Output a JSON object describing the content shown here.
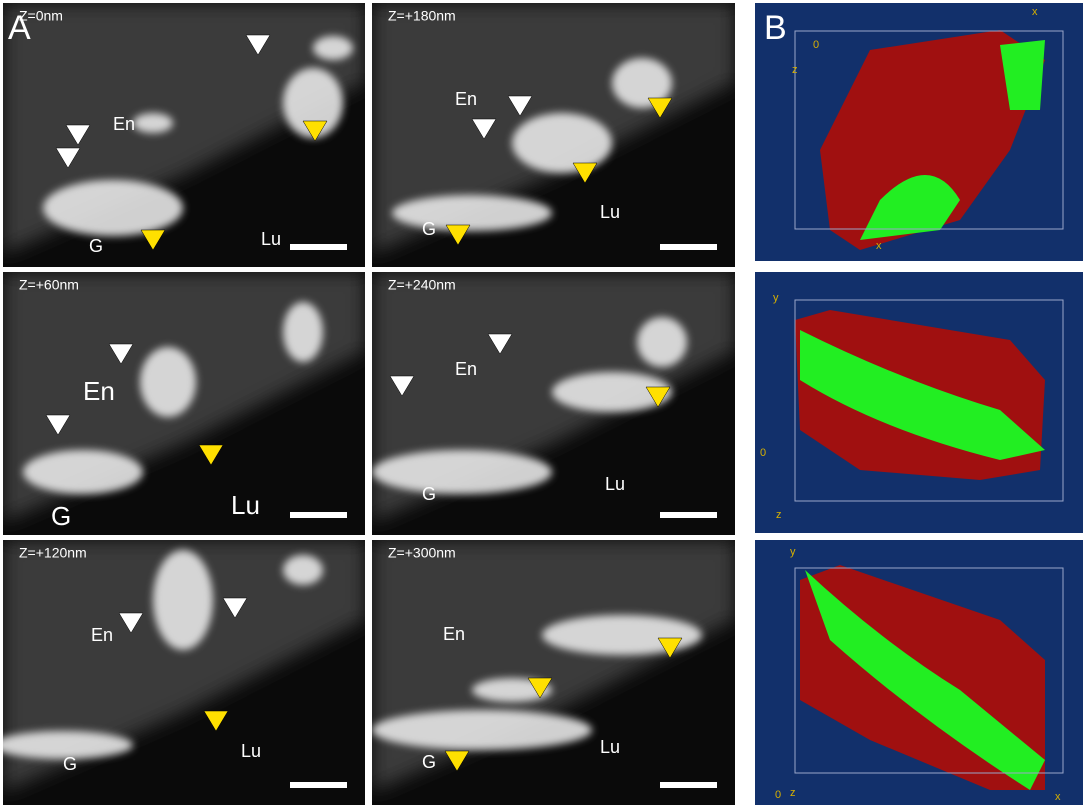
{
  "panel_a": {
    "label": "A",
    "images": [
      {
        "z": "Z=0nm",
        "en": "En",
        "lu": "Lu",
        "g": "G"
      },
      {
        "z": "Z=+60nm",
        "en": "En",
        "lu": "Lu",
        "g": "G"
      },
      {
        "z": "Z=+120nm",
        "en": "En",
        "lu": "Lu",
        "g": "G"
      },
      {
        "z": "Z=+180nm",
        "en": "En",
        "lu": "Lu",
        "g": "G"
      },
      {
        "z": "Z=+240nm",
        "en": "En",
        "lu": "Lu",
        "g": "G"
      },
      {
        "z": "Z=+300nm",
        "en": "En",
        "lu": "Lu",
        "g": "G"
      }
    ]
  },
  "panel_b": {
    "label": "B",
    "views": [
      {
        "axes": [
          "0",
          "x",
          "z",
          "x"
        ]
      },
      {
        "axes": [
          "y",
          "0",
          "z"
        ]
      },
      {
        "axes": [
          "y",
          "0",
          "z",
          "x"
        ]
      }
    ]
  }
}
